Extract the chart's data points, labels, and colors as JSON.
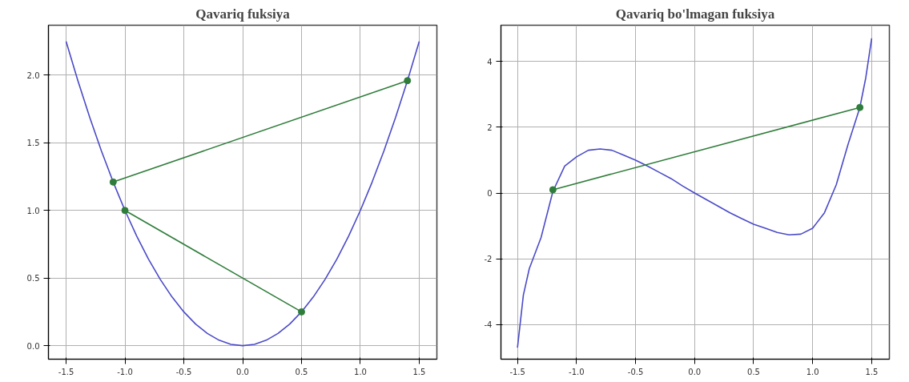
{
  "chart_data": [
    {
      "type": "line",
      "title": "Qavariq fuksiya",
      "grid": true,
      "xlim": [
        -1.65,
        1.65
      ],
      "ylim": [
        -0.1,
        2.37
      ],
      "xticks": [
        {
          "value": -1.5,
          "label": "-1.5"
        },
        {
          "value": -1,
          "label": "-1.0"
        },
        {
          "value": -0.5,
          "label": "-0.5"
        },
        {
          "value": 0,
          "label": "0.0"
        },
        {
          "value": 0.5,
          "label": "0.5"
        },
        {
          "value": 1,
          "label": "1.0"
        },
        {
          "value": 1.5,
          "label": "1.5"
        }
      ],
      "yticks": [
        {
          "value": 0,
          "label": "0.0"
        },
        {
          "value": 0.5,
          "label": "0.5"
        },
        {
          "value": 1,
          "label": "1.0"
        },
        {
          "value": 1.5,
          "label": "1.5"
        },
        {
          "value": 2,
          "label": "2.0"
        }
      ],
      "series": [
        {
          "color": "#4a4ac8",
          "marker": "none",
          "x": [
            -1.5,
            -1.4,
            -1.3,
            -1.2,
            -1.1,
            -1.0,
            -0.9,
            -0.8,
            -0.7,
            -0.6,
            -0.5,
            -0.4,
            -0.3,
            -0.2,
            -0.1,
            0,
            0.1,
            0.2,
            0.3,
            0.4,
            0.5,
            0.6,
            0.7,
            0.8,
            0.9,
            1.0,
            1.1,
            1.2,
            1.3,
            1.4,
            1.5
          ],
          "values": [
            2.25,
            1.96,
            1.69,
            1.44,
            1.21,
            1.0,
            0.81,
            0.64,
            0.49,
            0.36,
            0.25,
            0.16,
            0.09,
            0.04,
            0.01,
            0,
            0.01,
            0.04,
            0.09,
            0.16,
            0.25,
            0.36,
            0.49,
            0.64,
            0.81,
            1.0,
            1.21,
            1.44,
            1.69,
            1.96,
            2.25
          ]
        },
        {
          "color": "#2f7d3a",
          "marker": "circle",
          "x": [
            -1.1,
            1.4
          ],
          "values": [
            1.21,
            1.96
          ]
        },
        {
          "color": "#2f7d3a",
          "marker": "circle",
          "x": [
            -1.0,
            0.5
          ],
          "values": [
            1.0,
            0.25
          ]
        }
      ]
    },
    {
      "type": "line",
      "title": "Qavariq bo'lmagan fuksiya",
      "grid": true,
      "xlim": [
        -1.64,
        1.65
      ],
      "ylim": [
        -5.05,
        5.1
      ],
      "xticks": [
        {
          "value": -1.5,
          "label": "-1.5"
        },
        {
          "value": -1,
          "label": "-1.0"
        },
        {
          "value": -0.5,
          "label": "-0.5"
        },
        {
          "value": 0,
          "label": "0.0"
        },
        {
          "value": 0.5,
          "label": "0.5"
        },
        {
          "value": 1,
          "label": "1.0"
        },
        {
          "value": 1.5,
          "label": "1.5"
        }
      ],
      "yticks": [
        -4,
        -2,
        0,
        2,
        4
      ],
      "series": [
        {
          "color": "#4a4ac8",
          "marker": "none",
          "x": [
            -1.5,
            -1.45,
            -1.4,
            -1.3,
            -1.2,
            -1.1,
            -1.0,
            -0.9,
            -0.8,
            -0.7,
            -0.6,
            -0.5,
            -0.4,
            -0.3,
            -0.2,
            -0.1,
            0,
            0.1,
            0.2,
            0.3,
            0.4,
            0.5,
            0.6,
            0.7,
            0.8,
            0.9,
            1.0,
            1.1,
            1.2,
            1.3,
            1.4,
            1.45,
            1.5
          ],
          "values": [
            -4.7,
            -3.1,
            -2.3,
            -1.35,
            0.05,
            0.82,
            1.1,
            1.3,
            1.34,
            1.3,
            1.15,
            1.0,
            0.82,
            0.63,
            0.44,
            0.21,
            0,
            -0.2,
            -0.4,
            -0.6,
            -0.78,
            -0.95,
            -1.07,
            -1.2,
            -1.27,
            -1.25,
            -1.07,
            -0.6,
            0.25,
            1.48,
            2.6,
            3.5,
            4.7
          ]
        },
        {
          "color": "#2f7d3a",
          "marker": "circle",
          "x": [
            -1.2,
            1.4
          ],
          "values": [
            0.1,
            2.6
          ]
        }
      ]
    }
  ]
}
